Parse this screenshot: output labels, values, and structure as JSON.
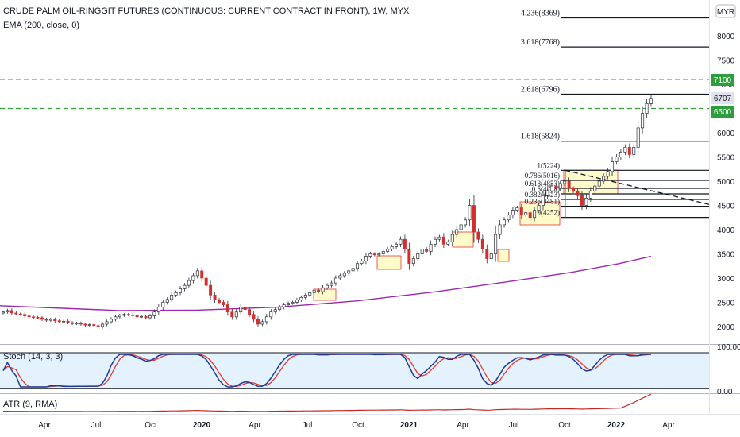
{
  "header": {
    "title": "CRUDE PALM OIL-RINGGIT FUTURES (CONTINUOUS: CURRENT CONTRACT IN FRONT), 1W, MYX",
    "indicator": "EMA (200, close, 0)",
    "currency": "MYR"
  },
  "stoch": {
    "label": "Stoch (14, 3, 3)",
    "upper": "100.00",
    "lower": "0.00"
  },
  "atr": {
    "label": "ATR (9, RMA)"
  },
  "price_tags": {
    "top": "7100",
    "mid": "6707",
    "bottom": "6500"
  },
  "colors": {
    "up": "#ffffff",
    "down": "#d32f2f",
    "wick": "#2a2e39",
    "ema": "#9c27b0",
    "dashed_level": "#2e9e3c",
    "stoch_k": "#1f3a93",
    "stoch_d": "#e53935",
    "stoch_band": "#e3f2fd",
    "atr": "#c62828",
    "highlight_box": "#fff59d",
    "highlight_border": "#e53935"
  },
  "chart_data": {
    "type": "candlestick",
    "title": "CRUDE PALM OIL-RINGGIT FUTURES (CONTINUOUS: CURRENT CONTRACT IN FRONT), 1W, MYX",
    "timeframe": "1W",
    "y_axis": {
      "ticks": [
        2000,
        2500,
        3000,
        3500,
        4000,
        4500,
        5000,
        5500,
        6000,
        6500,
        7000,
        7500,
        8000
      ],
      "range": [
        1800,
        8750
      ]
    },
    "x_axis": {
      "ticks": [
        "Apr",
        "Jul",
        "Oct",
        "2020",
        "Apr",
        "Jul",
        "Oct",
        "2021",
        "Apr",
        "Jul",
        "Oct",
        "2022",
        "Apr"
      ]
    },
    "candles_close_approx": [
      2300,
      2330,
      2280,
      2260,
      2250,
      2220,
      2200,
      2190,
      2180,
      2150,
      2130,
      2150,
      2120,
      2100,
      2110,
      2080,
      2060,
      2070,
      2050,
      2030,
      2040,
      2020,
      2000,
      2050,
      2100,
      2150,
      2200,
      2230,
      2250,
      2240,
      2230,
      2200,
      2210,
      2180,
      2220,
      2300,
      2400,
      2500,
      2560,
      2650,
      2700,
      2780,
      2850,
      2950,
      3050,
      3150,
      3000,
      2850,
      2650,
      2550,
      2500,
      2450,
      2300,
      2200,
      2300,
      2400,
      2350,
      2250,
      2150,
      2050,
      2100,
      2200,
      2300,
      2350,
      2400,
      2450,
      2480,
      2500,
      2550,
      2600,
      2650,
      2700,
      2750,
      2720,
      2800,
      2850,
      2900,
      3000,
      3050,
      3100,
      3150,
      3200,
      3300,
      3350,
      3450,
      3500,
      3480,
      3500,
      3550,
      3600,
      3650,
      3700,
      3800,
      3600,
      3300,
      3400,
      3500,
      3600,
      3550,
      3700,
      3800,
      3850,
      3700,
      3750,
      3900,
      4000,
      4100,
      4200,
      4500,
      3950,
      3800,
      3600,
      3400,
      3500,
      3900,
      4100,
      4200,
      4300,
      4400,
      4450,
      4300,
      4350,
      4250,
      4400,
      4500,
      4700,
      4800,
      4900,
      4850,
      4950,
      5000,
      4850,
      4800,
      4700,
      4500,
      4650,
      4800,
      4900,
      5000,
      5100,
      5200,
      5400,
      5500,
      5600,
      5700,
      5550,
      5700,
      6100,
      6400,
      6600,
      6707
    ],
    "candles_open_approx_note": "",
    "fib_levels": [
      {
        "label": "4.236(8369)",
        "value": 8369
      },
      {
        "label": "3.618(7768)",
        "value": 7768
      },
      {
        "label": "2.618(6796)",
        "value": 6796
      },
      {
        "label": "1.618(5824)",
        "value": 5824
      },
      {
        "label": "1(5224)",
        "value": 5224
      },
      {
        "label": "0.786(5016)",
        "value": 5016
      },
      {
        "label": "0.618(4853)",
        "value": 4853
      },
      {
        "label": "0.5(4738)",
        "value": 4738
      },
      {
        "label": "0.382(4623)",
        "value": 4623
      },
      {
        "label": "0.236(4481)",
        "value": 4481
      },
      {
        "label": "0(4252)",
        "value": 4252
      }
    ],
    "horizontal_levels": [
      7100,
      6500
    ],
    "last_price": 6707,
    "ema200_points": [
      [
        0,
        2430
      ],
      [
        150,
        2330
      ],
      [
        250,
        2340
      ],
      [
        350,
        2400
      ],
      [
        450,
        2530
      ],
      [
        550,
        2720
      ],
      [
        650,
        2950
      ],
      [
        720,
        3120
      ],
      [
        780,
        3300
      ],
      [
        820,
        3450
      ]
    ],
    "stoch": {
      "upper": 100,
      "lower": 0
    },
    "atr_label": "ATR (9, RMA)"
  }
}
